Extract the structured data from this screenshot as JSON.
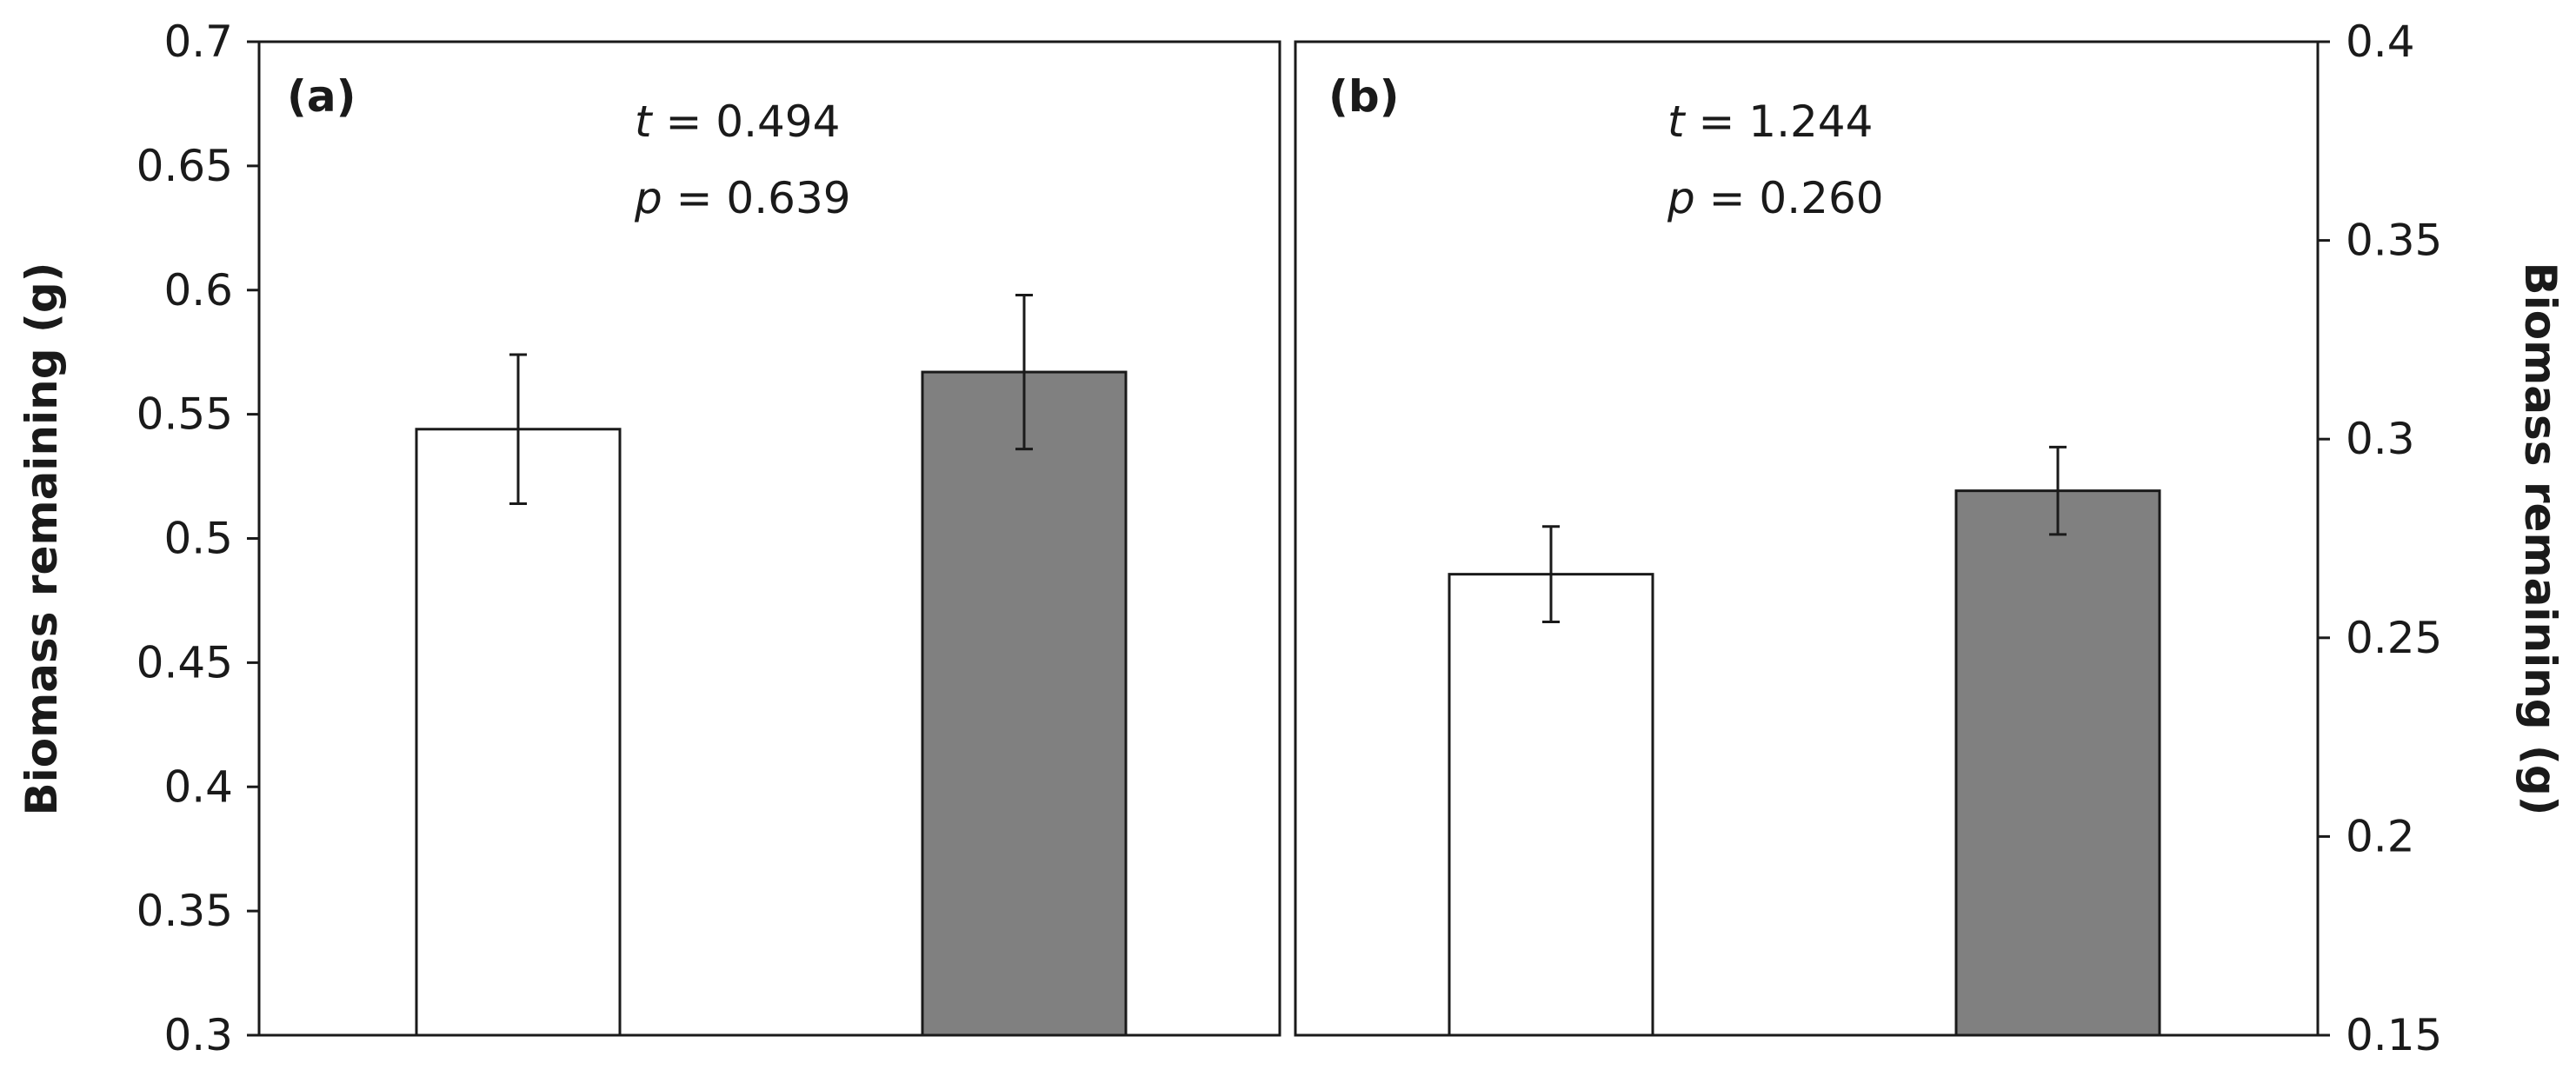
{
  "chart_data": [
    {
      "type": "bar",
      "panel_label": "(a)",
      "categories": [
        "",
        ""
      ],
      "values": [
        0.544,
        0.567
      ],
      "errors": [
        0.03,
        0.031
      ],
      "bar_colors": [
        "#ffffff",
        "#808080"
      ],
      "ylabel": "Biomass remaining (g)",
      "ylim": [
        0.3,
        0.7
      ],
      "yticks": [
        0.3,
        0.35,
        0.4,
        0.45,
        0.5,
        0.55,
        0.6,
        0.65,
        0.7
      ],
      "ytick_labels": [
        "0.3",
        "0.35",
        "0.4",
        "0.45",
        "0.5",
        "0.55",
        "0.6",
        "0.65",
        "0.7"
      ],
      "y_axis_side": "left",
      "stats": {
        "t_symbol": "t",
        "t_value": " = 0.494",
        "p_symbol": "p",
        "p_value": " = 0.639"
      },
      "grid": false
    },
    {
      "type": "bar",
      "panel_label": "(b)",
      "categories": [
        "",
        ""
      ],
      "values": [
        0.266,
        0.287
      ],
      "errors": [
        0.012,
        0.011
      ],
      "bar_colors": [
        "#ffffff",
        "#808080"
      ],
      "ylabel": "Biomass remaining (g)",
      "ylim": [
        0.15,
        0.4
      ],
      "yticks": [
        0.15,
        0.2,
        0.25,
        0.3,
        0.35,
        0.4
      ],
      "ytick_labels": [
        "0.15",
        "0.2",
        "0.25",
        "0.3",
        "0.35",
        "0.4"
      ],
      "y_axis_side": "right",
      "stats": {
        "t_symbol": "t",
        "t_value": " = 1.244",
        "p_symbol": "p",
        "p_value": " = 0.260"
      },
      "grid": false
    }
  ],
  "colors": {
    "axis": "#1a1a1a",
    "bar_outline": "#1a1a1a",
    "bar_light": "#ffffff",
    "bar_dark": "#808080"
  }
}
